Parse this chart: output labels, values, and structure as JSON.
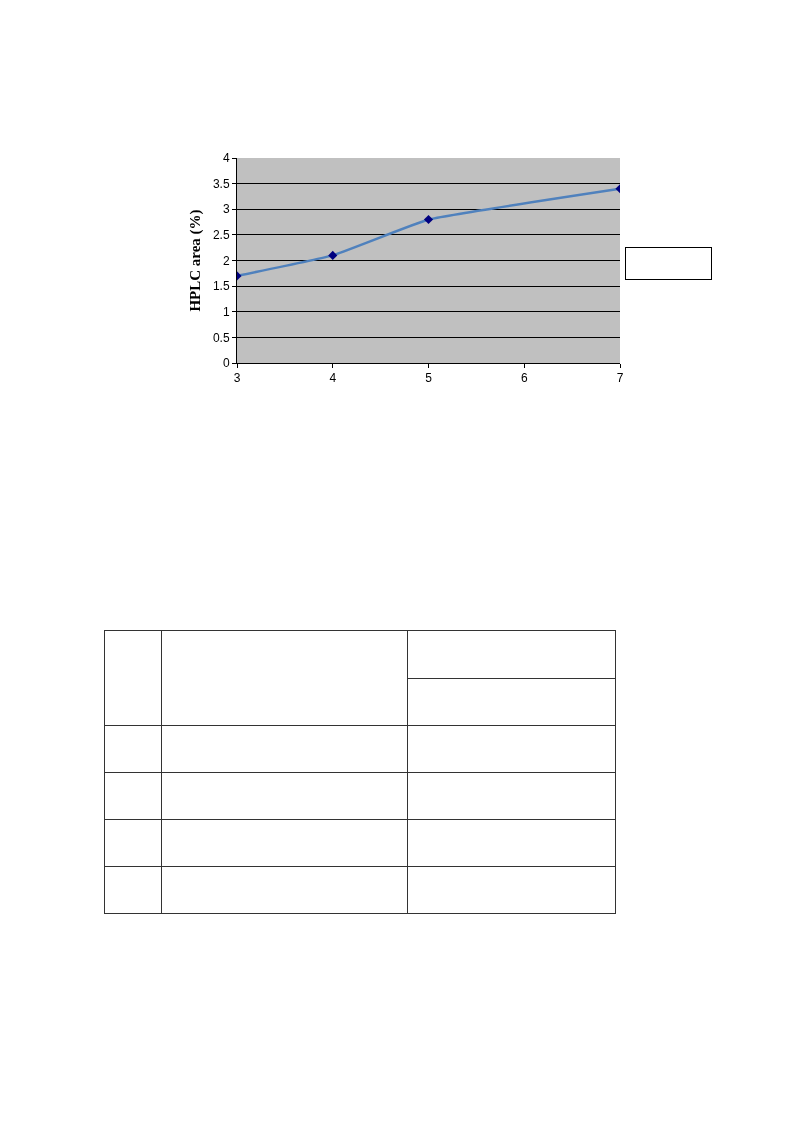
{
  "chart_data": {
    "type": "line",
    "ylabel": "HPLC area (%)",
    "x": [
      3,
      4,
      5,
      7
    ],
    "series": [
      {
        "color": "#4f81bd",
        "values": [
          1.7,
          2.1,
          2.8,
          3.4
        ]
      }
    ],
    "xlim": [
      3,
      7
    ],
    "xticks": [
      3,
      4,
      5,
      6,
      7
    ],
    "ylim": [
      0,
      4
    ],
    "yticks": [
      0,
      0.5,
      1,
      1.5,
      2,
      2.5,
      3,
      3.5,
      4
    ],
    "grid": "y",
    "marker": "diamond",
    "line_style": "solid"
  }
}
